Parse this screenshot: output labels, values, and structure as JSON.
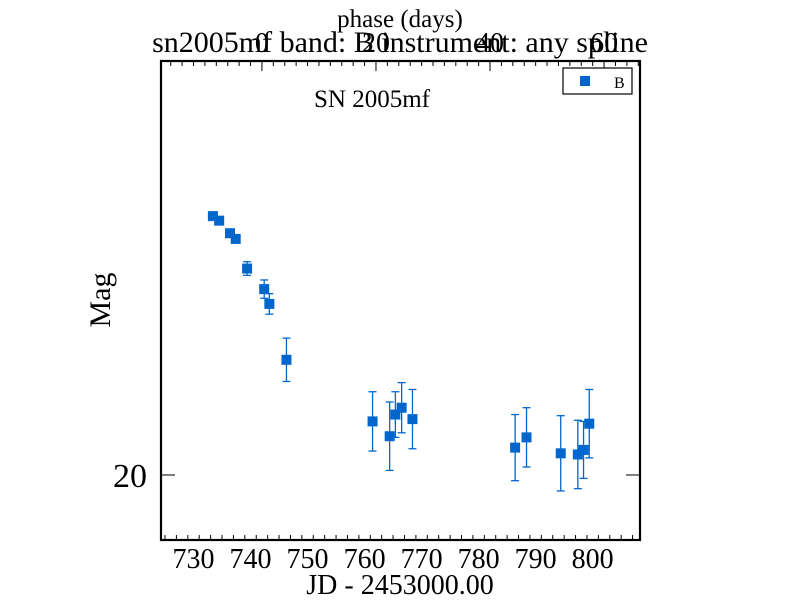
{
  "chart_data": {
    "type": "scatter",
    "title": "sn2005mf band: B instrument: any spline",
    "annotation": "SN 2005mf",
    "xlabel": "JD - 2453000.00",
    "ylabel": "Mag",
    "top_xlabel": "phase (days)",
    "xlim": [
      724.3,
      808.3
    ],
    "ylim": [
      20.57,
      16.37
    ],
    "y_inverted": true,
    "grid": false,
    "legend_position": "top-right",
    "x_ticks": [
      730,
      740,
      750,
      760,
      770,
      780,
      790,
      800
    ],
    "x_tick_labels": [
      "730",
      "740",
      "750",
      "760",
      "770",
      "780",
      "790",
      "800"
    ],
    "y_ticks": [
      20
    ],
    "y_tick_labels": [
      "20"
    ],
    "top_ticks": [
      0,
      20,
      40,
      60
    ],
    "top_tick_labels": [
      "0",
      "20",
      "40",
      "60"
    ],
    "phase_offset": 742,
    "marker_color": "#0066cc",
    "series": [
      {
        "name": "B",
        "x": [
          733.4,
          734.5,
          736.4,
          737.4,
          739.4,
          742.4,
          743.3,
          746.3,
          761.4,
          764.4,
          765.4,
          766.5,
          768.4,
          786.4,
          788.4,
          794.4,
          797.4,
          798.4,
          799.4
        ],
        "y": [
          17.73,
          17.77,
          17.88,
          17.93,
          18.19,
          18.37,
          18.5,
          18.99,
          19.53,
          19.66,
          19.47,
          19.41,
          19.51,
          19.76,
          19.67,
          19.81,
          19.82,
          19.78,
          19.55
        ],
        "err": [
          0.03,
          0.03,
          0.03,
          0.03,
          0.06,
          0.08,
          0.09,
          0.19,
          0.26,
          0.3,
          0.2,
          0.22,
          0.26,
          0.29,
          0.26,
          0.33,
          0.3,
          0.25,
          0.3
        ]
      }
    ]
  }
}
